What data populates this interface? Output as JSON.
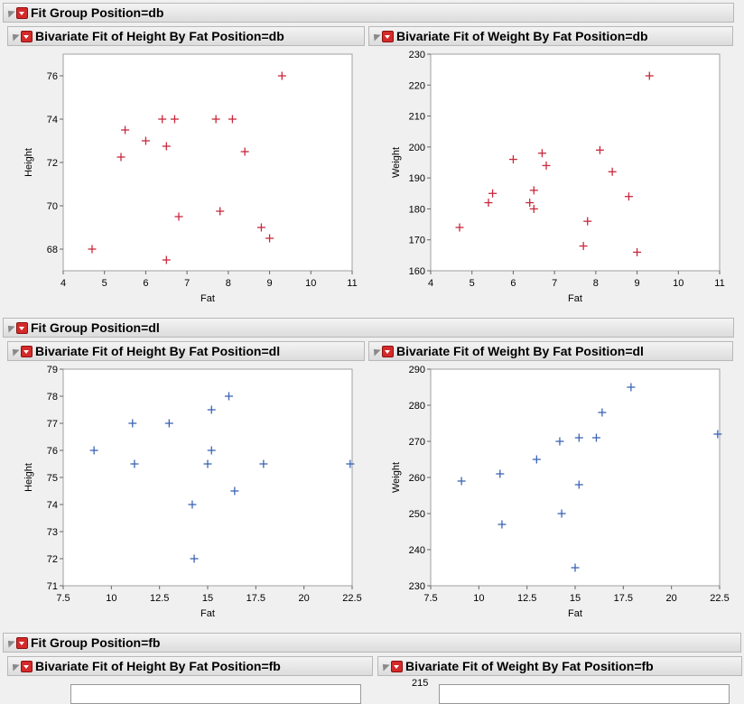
{
  "groups": [
    {
      "title": "Fit Group Position=db",
      "color": "#c8283c",
      "marker": "plus",
      "plots": [
        {
          "title": "Bivariate Fit of Height By Fat Position=db",
          "chart_data": {
            "type": "scatter",
            "xlabel": "Fat",
            "ylabel": "Height",
            "xlim": [
              4,
              11
            ],
            "ylim": [
              67,
              77
            ],
            "xticks": [
              4,
              5,
              6,
              7,
              8,
              9,
              10,
              11
            ],
            "yticks": [
              68,
              70,
              72,
              74,
              76
            ],
            "points": [
              [
                4.7,
                68
              ],
              [
                5.4,
                72.25
              ],
              [
                5.5,
                73.5
              ],
              [
                6,
                73
              ],
              [
                6.4,
                74
              ],
              [
                6.5,
                72.75
              ],
              [
                6.5,
                67.5
              ],
              [
                6.7,
                74
              ],
              [
                6.8,
                69.5
              ],
              [
                7.7,
                74
              ],
              [
                7.8,
                69.75
              ],
              [
                8.1,
                74
              ],
              [
                8.4,
                72.5
              ],
              [
                8.8,
                69
              ],
              [
                9,
                68.5
              ],
              [
                9.3,
                76
              ]
            ]
          }
        },
        {
          "title": "Bivariate Fit of Weight By Fat Position=db",
          "chart_data": {
            "type": "scatter",
            "xlabel": "Fat",
            "ylabel": "Weight",
            "xlim": [
              4,
              11
            ],
            "ylim": [
              160,
              230
            ],
            "xticks": [
              4,
              5,
              6,
              7,
              8,
              9,
              10,
              11
            ],
            "yticks": [
              160,
              170,
              180,
              190,
              200,
              210,
              220,
              230
            ],
            "points": [
              [
                4.7,
                174
              ],
              [
                5.4,
                182
              ],
              [
                5.5,
                185
              ],
              [
                6,
                196
              ],
              [
                6.4,
                182
              ],
              [
                6.5,
                186
              ],
              [
                6.5,
                180
              ],
              [
                6.7,
                198
              ],
              [
                6.8,
                194
              ],
              [
                7.7,
                168
              ],
              [
                7.8,
                176
              ],
              [
                8.1,
                199
              ],
              [
                8.4,
                192
              ],
              [
                8.8,
                184
              ],
              [
                9,
                166
              ],
              [
                9.3,
                223
              ]
            ]
          }
        }
      ]
    },
    {
      "title": "Fit Group Position=dl",
      "color": "#3c64b4",
      "marker": "plus",
      "plots": [
        {
          "title": "Bivariate Fit of Height By Fat Position=dl",
          "chart_data": {
            "type": "scatter",
            "xlabel": "Fat",
            "ylabel": "Height",
            "xlim": [
              7.5,
              22.5
            ],
            "ylim": [
              71,
              79
            ],
            "xticks": [
              7.5,
              10,
              12.5,
              15,
              17.5,
              20,
              22.5
            ],
            "yticks": [
              71,
              72,
              73,
              74,
              75,
              76,
              77,
              78,
              79
            ],
            "points": [
              [
                9.1,
                76
              ],
              [
                11.1,
                77
              ],
              [
                11.2,
                75.5
              ],
              [
                13,
                77
              ],
              [
                14.2,
                74
              ],
              [
                14.3,
                72
              ],
              [
                15,
                75.5
              ],
              [
                15.2,
                77.5
              ],
              [
                15.2,
                76
              ],
              [
                16.1,
                78
              ],
              [
                16.4,
                74.5
              ],
              [
                17.9,
                75.5
              ],
              [
                22.4,
                75.5
              ]
            ]
          }
        },
        {
          "title": "Bivariate Fit of Weight By Fat Position=dl",
          "chart_data": {
            "type": "scatter",
            "xlabel": "Fat",
            "ylabel": "Weight",
            "xlim": [
              7.5,
              22.5
            ],
            "ylim": [
              230,
              290
            ],
            "xticks": [
              7.5,
              10,
              12.5,
              15,
              17.5,
              20,
              22.5
            ],
            "yticks": [
              230,
              240,
              250,
              260,
              270,
              280,
              290
            ],
            "points": [
              [
                9.1,
                259
              ],
              [
                11.1,
                261
              ],
              [
                11.2,
                247
              ],
              [
                13,
                265
              ],
              [
                14.2,
                270
              ],
              [
                14.3,
                250
              ],
              [
                15,
                235
              ],
              [
                15.2,
                258
              ],
              [
                15.2,
                271
              ],
              [
                16.1,
                271
              ],
              [
                16.4,
                278
              ],
              [
                17.9,
                285
              ],
              [
                22.4,
                272
              ]
            ]
          }
        }
      ]
    },
    {
      "title": "Fit Group Position=fb",
      "plots": [
        {
          "title": "Bivariate Fit of Height By Fat Position=fb"
        },
        {
          "title": "Bivariate Fit of Weight By Fat Position=fb",
          "top_tick": "215"
        }
      ]
    }
  ]
}
